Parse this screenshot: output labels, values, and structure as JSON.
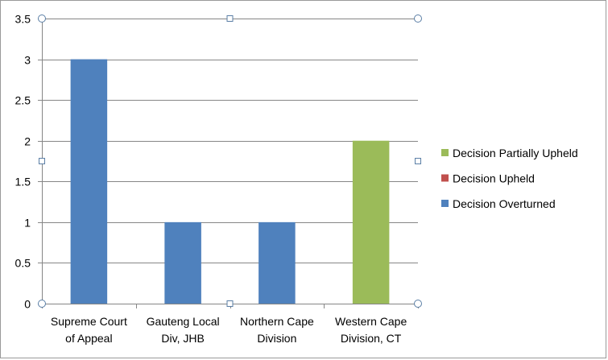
{
  "chart_data": {
    "type": "bar",
    "stacked": true,
    "categories": [
      "Supreme Court of Appeal",
      "Gauteng Local Div, JHB",
      "Northern Cape Division",
      "Western Cape Division, CT"
    ],
    "category_lines": [
      [
        "Supreme Court",
        "of Appeal"
      ],
      [
        "Gauteng Local",
        "Div, JHB"
      ],
      [
        "Northern Cape",
        "Division"
      ],
      [
        "Western Cape",
        "Division, CT"
      ]
    ],
    "series": [
      {
        "name": "Decision Overturned",
        "color": "#4f81bd",
        "values": [
          3,
          1,
          1,
          0
        ]
      },
      {
        "name": "Decision Upheld",
        "color": "#c0504d",
        "values": [
          0,
          0,
          0,
          0
        ]
      },
      {
        "name": "Decision Partially Upheld",
        "color": "#9bbb59",
        "values": [
          0,
          0,
          0,
          2
        ]
      }
    ],
    "legend_order": [
      "Decision Partially Upheld",
      "Decision Upheld",
      "Decision Overturned"
    ],
    "title": "",
    "xlabel": "",
    "ylabel": "",
    "ylim": [
      0,
      3.5
    ],
    "y_ticks": [
      0,
      0.5,
      1,
      1.5,
      2,
      2.5,
      3,
      3.5
    ],
    "y_tick_labels": [
      "0",
      "0.5",
      "1",
      "1.5",
      "2",
      "2.5",
      "3",
      "3.5"
    ],
    "grid": true,
    "legend_position": "right",
    "plot_area_selected": true,
    "colors": {
      "gridline": "#868686",
      "axis": "#868686",
      "selection_handle": "#5b7fa6"
    }
  }
}
